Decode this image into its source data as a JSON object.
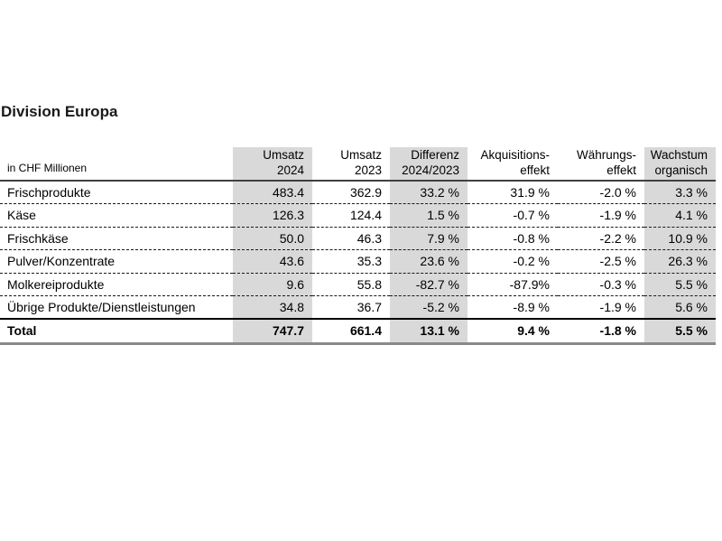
{
  "chart_data": {
    "type": "table",
    "title": "Division Europa",
    "unit_label": "in CHF Millionen",
    "columns": [
      {
        "line1": "Umsatz",
        "line2": "2024",
        "shaded": true
      },
      {
        "line1": "Umsatz",
        "line2": "2023",
        "shaded": false
      },
      {
        "line1": "Differenz",
        "line2": "2024/2023",
        "shaded": true
      },
      {
        "line1": "Akquisitions-",
        "line2": "effekt",
        "shaded": false
      },
      {
        "line1": "Währungs-",
        "line2": "effekt",
        "shaded": false
      },
      {
        "line1": "Wachstum",
        "line2": "organisch",
        "shaded": true
      }
    ],
    "rows": [
      {
        "label": "Frischprodukte",
        "values": [
          "483.4",
          "362.9",
          "33.2 %",
          "31.9 %",
          "-2.0 %",
          "3.3 %"
        ],
        "total": false
      },
      {
        "label": "Käse",
        "values": [
          "126.3",
          "124.4",
          "1.5 %",
          "-0.7 %",
          "-1.9 %",
          "4.1 %"
        ],
        "total": false
      },
      {
        "label": "Frischkäse",
        "values": [
          "50.0",
          "46.3",
          "7.9 %",
          "-0.8 %",
          "-2.2 %",
          "10.9 %"
        ],
        "total": false
      },
      {
        "label": "Pulver/Konzentrate",
        "values": [
          "43.6",
          "35.3",
          "23.6 %",
          "-0.2 %",
          "-2.5 %",
          "26.3 %"
        ],
        "total": false
      },
      {
        "label": "Molkereiprodukte",
        "values": [
          "9.6",
          "55.8",
          "-82.7 %",
          "-87.9%",
          "-0.3 %",
          "5.5 %"
        ],
        "total": false
      },
      {
        "label": "Übrige Produkte/Dienstleistungen",
        "values": [
          "34.8",
          "36.7",
          "-5.2 %",
          "-8.9 %",
          "-1.9 %",
          "5.6 %"
        ],
        "total": false
      },
      {
        "label": "Total",
        "values": [
          "747.7",
          "661.4",
          "13.1 %",
          "9.4 %",
          "-1.8 %",
          "5.5 %"
        ],
        "total": true
      }
    ],
    "colors": {
      "shaded_column_bg": "#d9d9d9",
      "header_rule": "#404040",
      "total_top_rule": "#000000",
      "bottom_rule": "#8a8a8a",
      "row_divider_dashed": "#1a1a1a",
      "text": "#000000"
    }
  }
}
